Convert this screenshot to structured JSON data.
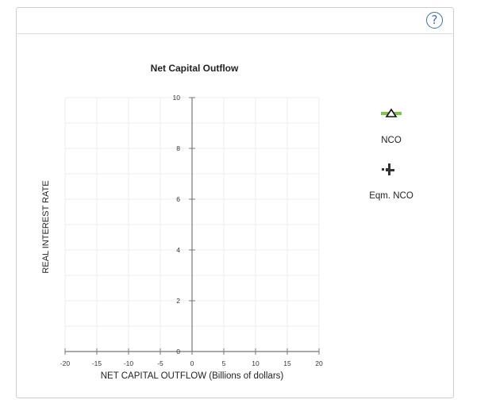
{
  "help": {
    "label": "?"
  },
  "chart_data": {
    "type": "line",
    "title": "Net Capital Outflow",
    "xlabel": "NET CAPITAL OUTFLOW (Billions of dollars)",
    "ylabel": "REAL INTEREST RATE",
    "xlim": [
      -20,
      20
    ],
    "ylim": [
      0,
      10
    ],
    "x_ticks": [
      -20,
      -15,
      -10,
      -5,
      0,
      5,
      10,
      15,
      20
    ],
    "y_ticks": [
      0,
      2,
      4,
      6,
      8,
      10
    ],
    "grid": true,
    "series": []
  },
  "legend": [
    {
      "label": "NCO",
      "icon": "triangle-line-icon",
      "color": "#7ac943"
    },
    {
      "label": "Eqm. NCO",
      "icon": "dotted-cross-icon",
      "color": "#333333"
    }
  ]
}
